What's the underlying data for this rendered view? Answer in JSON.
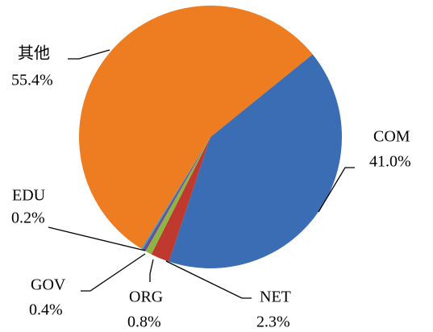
{
  "chart_data": {
    "type": "pie",
    "categories": [
      "COM",
      "NET",
      "ORG",
      "GOV",
      "EDU",
      "其他"
    ],
    "values": [
      41.0,
      2.3,
      0.8,
      0.4,
      0.2,
      55.4
    ],
    "value_labels": [
      "41.0%",
      "2.3%",
      "0.8%",
      "0.4%",
      "0.2%",
      "55.4%"
    ],
    "colors": [
      "#3b6db4",
      "#c0392f",
      "#8fb443",
      "#6b4f94",
      "#3a9fc2",
      "#ee7d22"
    ]
  }
}
